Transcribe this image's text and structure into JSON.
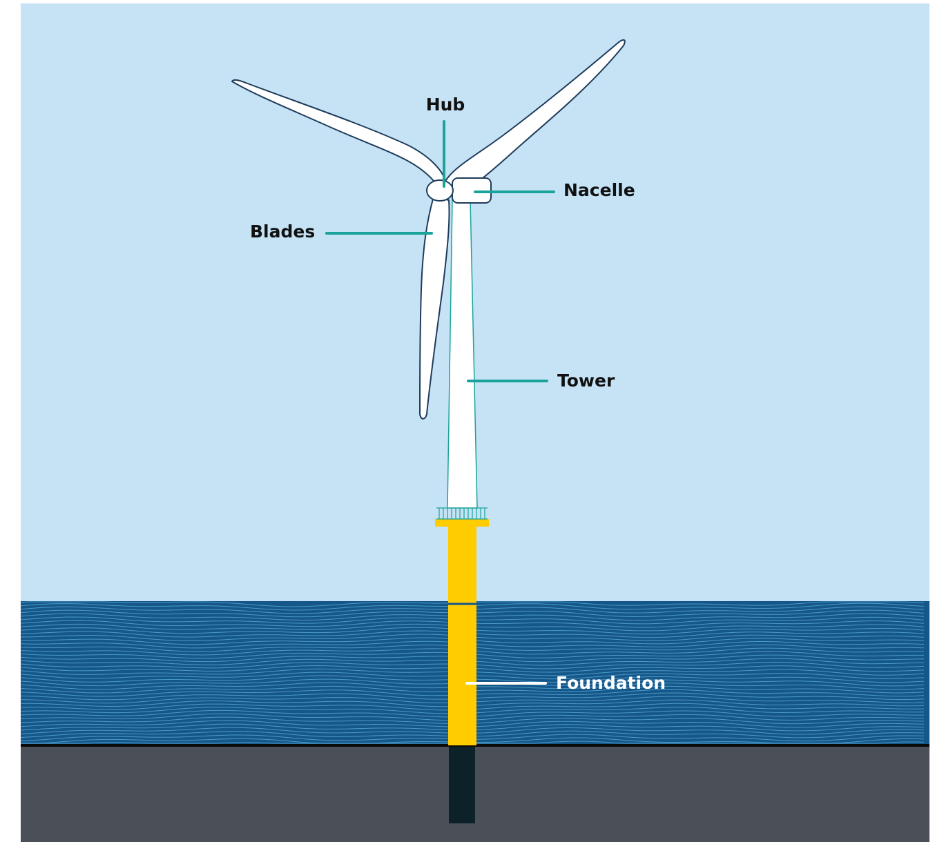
{
  "labels": {
    "hub": "Hub",
    "nacelle": "Nacelle",
    "blades": "Blades",
    "tower": "Tower",
    "foundation": "Foundation"
  }
}
